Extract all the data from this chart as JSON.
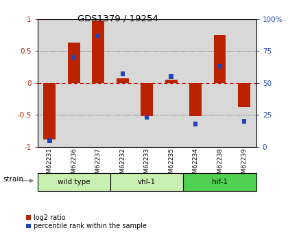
{
  "title": "GDS1379 / 19254",
  "samples": [
    "GSM62231",
    "GSM62236",
    "GSM62237",
    "GSM62232",
    "GSM62233",
    "GSM62235",
    "GSM62234",
    "GSM62238",
    "GSM62239"
  ],
  "log2_ratio": [
    -0.88,
    0.63,
    0.97,
    0.07,
    -0.52,
    0.05,
    -0.52,
    0.75,
    -0.38
  ],
  "percentile": [
    5,
    70,
    87,
    57,
    23,
    55,
    18,
    63,
    20
  ],
  "groups": [
    {
      "label": "wild type",
      "start": 0,
      "end": 3,
      "color": "#c8f0b0"
    },
    {
      "label": "vhl-1",
      "start": 3,
      "end": 6,
      "color": "#c8f0b0"
    },
    {
      "label": "hif-1",
      "start": 6,
      "end": 9,
      "color": "#50d050"
    }
  ],
  "ylim": [
    -1,
    1
  ],
  "y2lim": [
    0,
    100
  ],
  "bar_color": "#bb2200",
  "pct_color": "#2244bb",
  "hline_color": "#cc0000",
  "dot_color": "#888888",
  "bg_color": "#d8d8d8",
  "bar_width": 0.5,
  "pct_bar_width": 0.18,
  "legend_log2": "log2 ratio",
  "legend_pct": "percentile rank within the sample",
  "strain_label": "strain",
  "left_yticks": [
    -1,
    -0.5,
    0,
    0.5,
    1
  ],
  "left_yticklabels": [
    "-1",
    "-0.5",
    "0",
    "0.5",
    "1"
  ],
  "right_yticks": [
    0,
    25,
    50,
    75,
    100
  ],
  "right_yticklabels": [
    "0",
    "25",
    "50",
    "75",
    "100%"
  ]
}
